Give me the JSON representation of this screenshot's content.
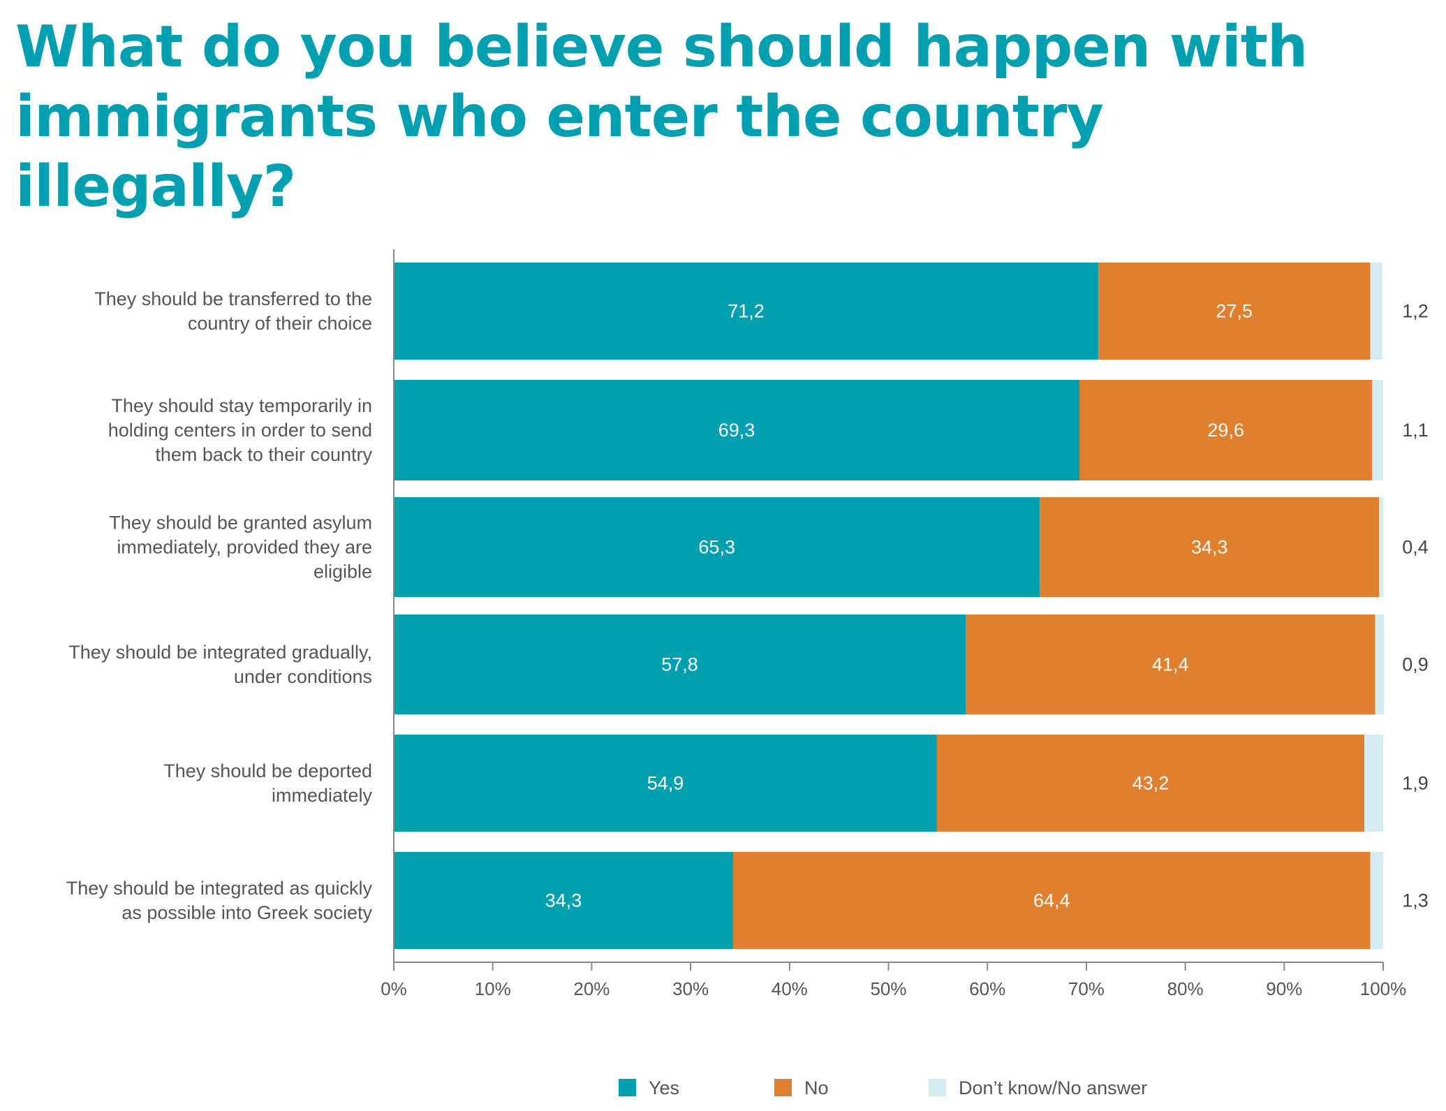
{
  "title": "What do you believe should happen with immigrants who enter the country illegally?",
  "colors": {
    "yes": "#00a0b0",
    "no": "#e07f2d",
    "dk": "#d3ebf1",
    "title": "#00a0b0"
  },
  "chart_data": {
    "type": "bar",
    "orientation": "horizontal",
    "stacked": true,
    "title": "What do you believe should happen with immigrants who enter the country illegally?",
    "categories": [
      [
        "They should be transferred to the",
        "country of their choice"
      ],
      [
        "They should stay temporarily in",
        "holding centers in order to send",
        "them back to their country"
      ],
      [
        "They should be granted asylum",
        "immediately, provided they are",
        "eligible"
      ],
      [
        "They should be integrated gradually,",
        "under conditions"
      ],
      [
        "They should be deported",
        "immediately"
      ],
      [
        "They should be integrated as quickly",
        "as possible into Greek society"
      ]
    ],
    "series": [
      {
        "name": "Yes",
        "values": [
          71.2,
          69.3,
          65.3,
          57.8,
          54.9,
          34.3
        ],
        "labels": [
          "71,2",
          "69,3",
          "65,3",
          "57,8",
          "54,9",
          "34,3"
        ]
      },
      {
        "name": "No",
        "values": [
          27.5,
          29.6,
          34.3,
          41.4,
          43.2,
          64.4
        ],
        "labels": [
          "27,5",
          "29,6",
          "34,3",
          "41,4",
          "43,2",
          "64,4"
        ]
      },
      {
        "name": "Don’t know/No answer",
        "values": [
          1.2,
          1.1,
          0.4,
          0.9,
          1.9,
          1.3
        ],
        "labels": [
          "1,2",
          "1,1",
          "0,4",
          "0,9",
          "1,9",
          "1,3"
        ]
      }
    ],
    "xlim": [
      0,
      100
    ],
    "xticks": [
      "0%",
      "10%",
      "20%",
      "30%",
      "40%",
      "50%",
      "60%",
      "70%",
      "80%",
      "90%",
      "100%"
    ],
    "grid": false,
    "legend": "bottom"
  }
}
